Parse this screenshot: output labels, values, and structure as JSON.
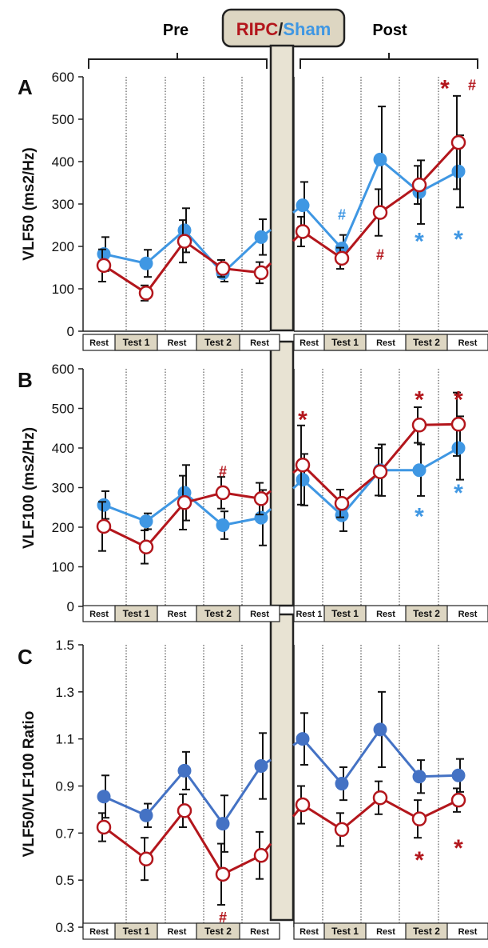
{
  "header": {
    "pre": "Pre",
    "post": "Post",
    "ripc": "RIPC",
    "slash": "/",
    "sham": "Sham"
  },
  "colors": {
    "ripc": "#b3161c",
    "sham": "#3f97e3",
    "sham_c": "#4472c4",
    "bar": "#e8e3d3",
    "label_bg": "#ddd6c2"
  },
  "chart_data": [
    {
      "type": "line",
      "panel": "A",
      "ylabel": "VLF50 (ms2/Hz)",
      "ylim": [
        0,
        600
      ],
      "yticks": [
        0,
        100,
        200,
        300,
        400,
        500,
        600
      ],
      "tick_labels": [
        "0",
        "100",
        "200",
        "300",
        "400",
        "500",
        "600"
      ],
      "categories_pre": [
        "Rest",
        "Test 1",
        "Rest",
        "Test 2",
        "Rest"
      ],
      "categories_post": [
        "Rest",
        "Test 1",
        "Rest",
        "Test 2",
        "Rest"
      ],
      "series": [
        {
          "name": "RIPC",
          "pre": [
            155,
            90,
            212,
            148,
            138
          ],
          "post": [
            235,
            172,
            280,
            345,
            445
          ],
          "err_pre": [
            38,
            18,
            50,
            20,
            25
          ],
          "err_post": [
            35,
            25,
            55,
            45,
            110
          ]
        },
        {
          "name": "Sham",
          "pre": [
            182,
            160,
            238,
            137,
            222
          ],
          "post": [
            297,
            195,
            405,
            328,
            377
          ],
          "err_pre": [
            40,
            32,
            52,
            20,
            42
          ],
          "err_post": [
            55,
            32,
            125,
            75,
            85
          ]
        }
      ],
      "annotations": [
        {
          "text": "#",
          "color": "sham",
          "side": "post",
          "idx": 1,
          "y": 275
        },
        {
          "text": "#",
          "color": "ripc",
          "side": "post",
          "idx": 2,
          "y": 180
        },
        {
          "text": "*",
          "color": "sham",
          "side": "post",
          "idx": 3,
          "y": 220
        },
        {
          "text": "*",
          "color": "sham",
          "side": "post",
          "idx": 4,
          "y": 225
        },
        {
          "text": "*",
          "color": "ripc",
          "side": "post",
          "idx": 4,
          "y": 580,
          "dx": -17
        },
        {
          "text": "#",
          "color": "ripc",
          "side": "post",
          "idx": 4,
          "y": 580,
          "dx": 17
        }
      ]
    },
    {
      "type": "line",
      "panel": "B",
      "ylabel": "VLF100 (ms2/Hz)",
      "ylim": [
        0,
        600
      ],
      "yticks": [
        0,
        100,
        200,
        300,
        400,
        500,
        600
      ],
      "tick_labels": [
        "0",
        "100",
        "200",
        "300",
        "400",
        "500",
        "600"
      ],
      "categories_pre": [
        "Rest",
        "Test 1",
        "Rest",
        "Test 2",
        "Rest"
      ],
      "categories_post": [
        "Rest 1",
        "Test 1",
        "Rest",
        "Test 2",
        "Rest"
      ],
      "series": [
        {
          "name": "RIPC",
          "pre": [
            202,
            150,
            262,
            287,
            272
          ],
          "post": [
            357,
            260,
            340,
            458,
            460
          ],
          "err_pre": [
            62,
            42,
            68,
            40,
            40
          ],
          "err_post": [
            100,
            35,
            60,
            45,
            80
          ]
        },
        {
          "name": "Sham",
          "pre": [
            256,
            215,
            287,
            205,
            224
          ],
          "post": [
            320,
            230,
            344,
            344,
            400
          ],
          "err_pre": [
            35,
            20,
            70,
            35,
            70
          ],
          "err_post": [
            65,
            40,
            65,
            65,
            80
          ]
        }
      ],
      "annotations": [
        {
          "text": "#",
          "color": "ripc",
          "side": "pre",
          "idx": 3,
          "y": 340
        },
        {
          "text": "*",
          "color": "ripc",
          "side": "post",
          "idx": 0,
          "y": 480
        },
        {
          "text": "*",
          "color": "ripc",
          "side": "post",
          "idx": 3,
          "y": 530
        },
        {
          "text": "*",
          "color": "ripc",
          "side": "post",
          "idx": 4,
          "y": 530
        },
        {
          "text": "*",
          "color": "sham",
          "side": "post",
          "idx": 3,
          "y": 235
        },
        {
          "text": "*",
          "color": "sham",
          "side": "post",
          "idx": 4,
          "y": 295
        }
      ]
    },
    {
      "type": "line",
      "panel": "C",
      "ylabel": "VLF50/VLF100 Ratio",
      "ylim": [
        0.3,
        1.5
      ],
      "yticks": [
        0.3,
        0.5,
        0.7,
        0.9,
        1.1,
        1.3,
        1.5
      ],
      "tick_labels": [
        "0.3",
        "0.5",
        "0.7",
        "0.9",
        "1.1",
        "1.3",
        "1.5"
      ],
      "categories_pre": [
        "Rest",
        "Test 1",
        "Rest",
        "Test 2",
        "Rest"
      ],
      "categories_post": [
        "Rest",
        "Test 1",
        "Rest",
        "Test 2",
        "Rest"
      ],
      "series": [
        {
          "name": "RIPC",
          "pre": [
            0.725,
            0.59,
            0.795,
            0.525,
            0.605
          ],
          "post": [
            0.82,
            0.715,
            0.85,
            0.76,
            0.84
          ],
          "err_pre": [
            0.06,
            0.09,
            0.07,
            0.13,
            0.1
          ],
          "err_post": [
            0.08,
            0.07,
            0.07,
            0.08,
            0.05
          ]
        },
        {
          "name": "Sham",
          "pre": [
            0.855,
            0.775,
            0.965,
            0.74,
            0.985
          ],
          "post": [
            1.1,
            0.91,
            1.14,
            0.94,
            0.945
          ],
          "err_pre": [
            0.09,
            0.05,
            0.08,
            0.12,
            0.14
          ],
          "err_post": [
            0.11,
            0.07,
            0.16,
            0.07,
            0.07
          ]
        }
      ],
      "annotations": [
        {
          "text": "#",
          "color": "ripc",
          "side": "pre",
          "idx": 3,
          "y": 0.34
        },
        {
          "text": "*",
          "color": "ripc",
          "side": "post",
          "idx": 3,
          "y": 0.6
        },
        {
          "text": "*",
          "color": "ripc",
          "side": "post",
          "idx": 4,
          "y": 0.65
        }
      ]
    }
  ]
}
